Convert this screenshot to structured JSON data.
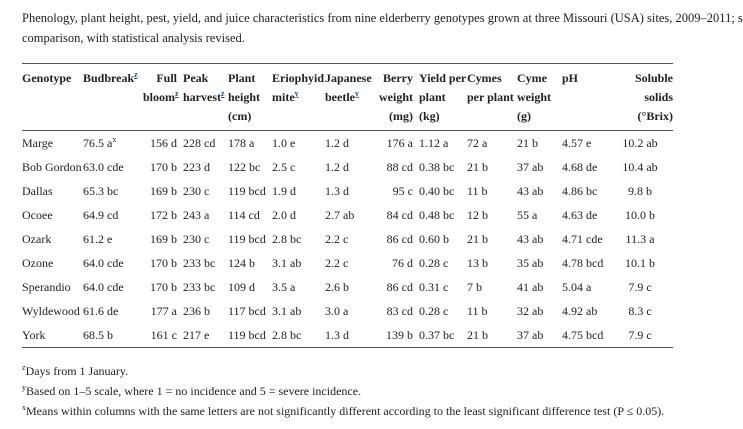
{
  "caption": {
    "lines": [
      "Phenology, plant height, pest, yield, and juice characteristics from nine elderberry genotypes grown at three Missouri (USA) sites, 2009–2011; s",
      "comparison, with statistical analysis revised."
    ]
  },
  "table": {
    "headers": [
      {
        "text": "Genotype"
      },
      {
        "text": "Budbreak",
        "sup": "z"
      },
      {
        "text": "Full bloom",
        "sup": "z"
      },
      {
        "text": "Peak harvest",
        "sup": "z"
      },
      {
        "text": "Plant height (cm)"
      },
      {
        "text": "Eriophyid mite",
        "sup": "y"
      },
      {
        "text": "Japanese beetle",
        "sup": "y"
      },
      {
        "text": "Berry weight (mg)"
      },
      {
        "text": "Yield per plant (kg)"
      },
      {
        "text": "Cymes per plant"
      },
      {
        "text": "Cyme weight (g)"
      },
      {
        "text": "pH"
      },
      {
        "text": "Soluble solids (°Brix)"
      }
    ],
    "rows": [
      [
        "Marge",
        {
          "text": "76.5 a",
          "sup": "x"
        },
        "156 d",
        "228 cd",
        "178 a",
        "1.0 e",
        "1.2 d",
        "176 a",
        "1.12 a",
        "72 a",
        "21 b",
        "4.57 e",
        "10.2 ab"
      ],
      [
        "Bob Gordon",
        "63.0 cde",
        "170 b",
        "223 d",
        "122 bc",
        "2.5 c",
        "1.2 d",
        "88 cd",
        "0.38 bc",
        "21 b",
        "37 ab",
        "4.68 de",
        "10.4 ab"
      ],
      [
        "Dallas",
        "65.3 bc",
        "169 b",
        "230 c",
        "119 bcd",
        "1.9 d",
        "1.3 d",
        "95 c",
        "0.40 bc",
        "11 b",
        "43 ab",
        "4.86 bc",
        "9.8 b"
      ],
      [
        "Ocoee",
        "64.9 cd",
        "172 b",
        "243 a",
        "114 cd",
        "2.0 d",
        "2.7 ab",
        "84 cd",
        "0.48 bc",
        "12 b",
        "55 a",
        "4.63 de",
        "10.0 b"
      ],
      [
        "Ozark",
        "61.2 e",
        "169 b",
        "230 c",
        "119 bcd",
        "2.8 bc",
        "2.2 c",
        "86 cd",
        "0.60 b",
        "21 b",
        "43 ab",
        "4.71 cde",
        "11.3 a"
      ],
      [
        "Ozone",
        "64.0 cde",
        "170 b",
        "233 bc",
        "124 b",
        "3.1 ab",
        "2.2 c",
        "76 d",
        "0.28 c",
        "13 b",
        "35 ab",
        "4.78 bcd",
        "10.1 b"
      ],
      [
        "Sperandio",
        "64.0 cde",
        "170 b",
        "233 bc",
        "109 d",
        "3.5 a",
        "2.6 b",
        "86 cd",
        "0.31 c",
        "7 b",
        "41 ab",
        "5.04 a",
        "7.9 c"
      ],
      [
        "Wyldewood",
        "61.6 de",
        "177 a",
        "236 b",
        "117 bcd",
        "3.1 ab",
        "3.0 a",
        "83 cd",
        "0.28 c",
        "11 b",
        "32 ab",
        "4.92 ab",
        "8.3 c"
      ],
      [
        "York",
        "68.5 b",
        "161 c",
        "217 e",
        "119 bcd",
        "2.8 bc",
        "1.3 d",
        "139 b",
        "0.37 bc",
        "21 b",
        "37 ab",
        "4.75 bcd",
        "7.9 c"
      ]
    ]
  },
  "footnotes": [
    {
      "sup": "z",
      "text": "Days from 1 January."
    },
    {
      "sup": "y",
      "text": "Based on 1–5 scale, where 1 = no incidence and 5 = severe incidence."
    },
    {
      "sup": "x",
      "text": "Means within columns with the same letters are not significantly different according to the least significant difference test (P ≤ 0.05)."
    }
  ]
}
